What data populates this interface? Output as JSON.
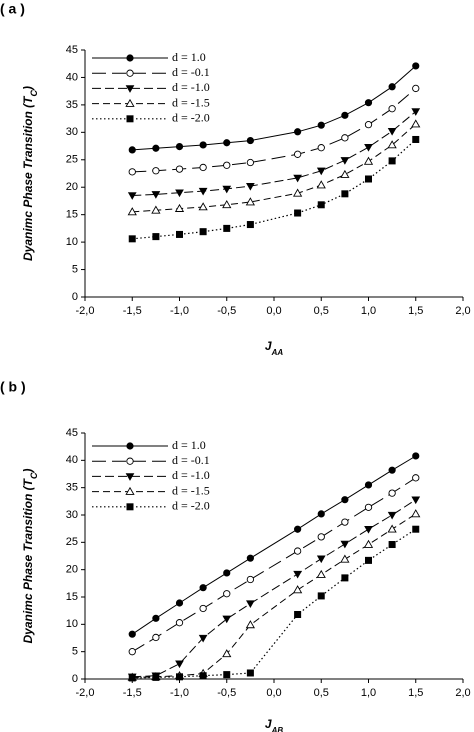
{
  "chart_data": [
    {
      "type": "line",
      "panel_label": "( a )",
      "xlabel": "J",
      "xlabel_sub": "AA",
      "ylabel": "Dyanimc Phase Transition (T",
      "ylabel_sub": "C",
      "ylabel_close": ")",
      "xlim": [
        -2.0,
        2.0
      ],
      "ylim": [
        0,
        45
      ],
      "xticks": [
        -2.0,
        -1.5,
        -1.0,
        -0.5,
        0.0,
        0.5,
        1.0,
        1.5,
        2.0
      ],
      "xtick_labels": [
        "-2,0",
        "-1,5",
        "-1,0",
        "-0,5",
        "0,0",
        "0,5",
        "1,0",
        "1,5",
        "2,0"
      ],
      "yticks": [
        0,
        5,
        10,
        15,
        20,
        25,
        30,
        35,
        40,
        45
      ],
      "ytick_labels": [
        "0",
        "5",
        "10",
        "15",
        "20",
        "25",
        "30",
        "35",
        "40",
        "45"
      ],
      "legend_position": "top-left",
      "series": [
        {
          "name": "d = 1.0",
          "marker": "filled-circle",
          "dash": "solid",
          "x": [
            -1.5,
            -1.25,
            -1.0,
            -0.75,
            -0.5,
            -0.25,
            0.25,
            0.5,
            0.75,
            1.0,
            1.25,
            1.5
          ],
          "y": [
            26.8,
            27.1,
            27.4,
            27.7,
            28.1,
            28.5,
            30.1,
            31.3,
            33.1,
            35.4,
            38.3,
            42.1
          ]
        },
        {
          "name": "d = -0.1",
          "marker": "open-circle",
          "dash": "long-dash",
          "x": [
            -1.5,
            -1.25,
            -1.0,
            -0.75,
            -0.5,
            -0.25,
            0.25,
            0.5,
            0.75,
            1.0,
            1.25,
            1.5
          ],
          "y": [
            22.8,
            23.0,
            23.3,
            23.6,
            24.0,
            24.5,
            26.0,
            27.2,
            29.0,
            31.4,
            34.3,
            38.0
          ]
        },
        {
          "name": "d = -1.0",
          "marker": "filled-triangle-down",
          "dash": "dash",
          "x": [
            -1.5,
            -1.25,
            -1.0,
            -0.75,
            -0.5,
            -0.25,
            0.25,
            0.5,
            0.75,
            1.0,
            1.25,
            1.5
          ],
          "y": [
            18.5,
            18.7,
            19.0,
            19.3,
            19.7,
            20.2,
            21.7,
            23.0,
            24.9,
            27.3,
            30.2,
            33.8
          ]
        },
        {
          "name": "d = -1.5",
          "marker": "open-triangle-up",
          "dash": "medium-dash",
          "x": [
            -1.5,
            -1.25,
            -1.0,
            -0.75,
            -0.5,
            -0.25,
            0.25,
            0.5,
            0.75,
            1.0,
            1.25,
            1.5
          ],
          "y": [
            15.5,
            15.8,
            16.1,
            16.4,
            16.8,
            17.3,
            18.9,
            20.4,
            22.3,
            24.7,
            27.7,
            31.5
          ]
        },
        {
          "name": "d = -2.0",
          "marker": "filled-square",
          "dash": "dot",
          "x": [
            -1.5,
            -1.25,
            -1.0,
            -0.75,
            -0.5,
            -0.25,
            0.25,
            0.5,
            0.75,
            1.0,
            1.25,
            1.5
          ],
          "y": [
            10.6,
            11.0,
            11.4,
            11.9,
            12.5,
            13.2,
            15.3,
            16.8,
            18.8,
            21.5,
            24.8,
            28.7
          ]
        }
      ]
    },
    {
      "type": "line",
      "panel_label": "( b )",
      "xlabel": "J",
      "xlabel_sub": "AB",
      "ylabel": "Dyanimc Phase Transition (T",
      "ylabel_sub": "C",
      "ylabel_close": ")",
      "xlim": [
        -2.0,
        2.0
      ],
      "ylim": [
        0,
        45
      ],
      "xticks": [
        -2.0,
        -1.5,
        -1.0,
        -0.5,
        0.0,
        0.5,
        1.0,
        1.5,
        2.0
      ],
      "xtick_labels": [
        "-2,0",
        "-1,5",
        "-1,0",
        "-0,5",
        "0,0",
        "0,5",
        "1,0",
        "1,5",
        "2,0"
      ],
      "yticks": [
        0,
        5,
        10,
        15,
        20,
        25,
        30,
        35,
        40,
        45
      ],
      "ytick_labels": [
        "0",
        "5",
        "10",
        "15",
        "20",
        "25",
        "30",
        "35",
        "40",
        "45"
      ],
      "legend_position": "top-left",
      "series": [
        {
          "name": "d = 1.0",
          "marker": "filled-circle",
          "dash": "solid",
          "x": [
            -1.5,
            -1.25,
            -1.0,
            -0.75,
            -0.5,
            -0.25,
            0.25,
            0.5,
            0.75,
            1.0,
            1.25,
            1.5
          ],
          "y": [
            8.2,
            11.1,
            13.9,
            16.7,
            19.4,
            22.1,
            27.4,
            30.2,
            32.8,
            35.5,
            38.2,
            40.8
          ]
        },
        {
          "name": "d = -0.1",
          "marker": "open-circle",
          "dash": "long-dash",
          "x": [
            -1.5,
            -1.25,
            -1.0,
            -0.75,
            -0.5,
            -0.25,
            0.25,
            0.5,
            0.75,
            1.0,
            1.25,
            1.5
          ],
          "y": [
            5.0,
            7.6,
            10.3,
            12.9,
            15.6,
            18.2,
            23.4,
            26.0,
            28.7,
            31.4,
            34.0,
            36.8
          ]
        },
        {
          "name": "d = -1.0",
          "marker": "filled-triangle-down",
          "dash": "dash",
          "x": [
            -1.5,
            -1.25,
            -1.0,
            -0.75,
            -0.5,
            -0.25,
            0.25,
            0.5,
            0.75,
            1.0,
            1.25,
            1.5
          ],
          "y": [
            0.4,
            0.6,
            2.8,
            7.5,
            11.0,
            13.8,
            19.2,
            22.0,
            24.7,
            27.4,
            30.0,
            32.8
          ]
        },
        {
          "name": "d = -1.5",
          "marker": "open-triangle-up",
          "dash": "medium-dash",
          "x": [
            -1.5,
            -1.25,
            -1.0,
            -0.75,
            -0.5,
            -0.25,
            0.25,
            0.5,
            0.75,
            1.0,
            1.25,
            1.5
          ],
          "y": [
            0.3,
            0.4,
            0.6,
            1.0,
            4.6,
            9.9,
            16.3,
            19.1,
            21.9,
            24.6,
            27.4,
            30.2
          ]
        },
        {
          "name": "d = -2.0",
          "marker": "filled-square",
          "dash": "dot",
          "x": [
            -1.5,
            -1.25,
            -1.0,
            -0.75,
            -0.5,
            -0.25,
            0.25,
            0.5,
            0.75,
            1.0,
            1.25,
            1.5
          ],
          "y": [
            0.2,
            0.3,
            0.4,
            0.6,
            0.8,
            1.1,
            11.8,
            15.2,
            18.5,
            21.7,
            24.6,
            27.4
          ]
        }
      ]
    }
  ]
}
